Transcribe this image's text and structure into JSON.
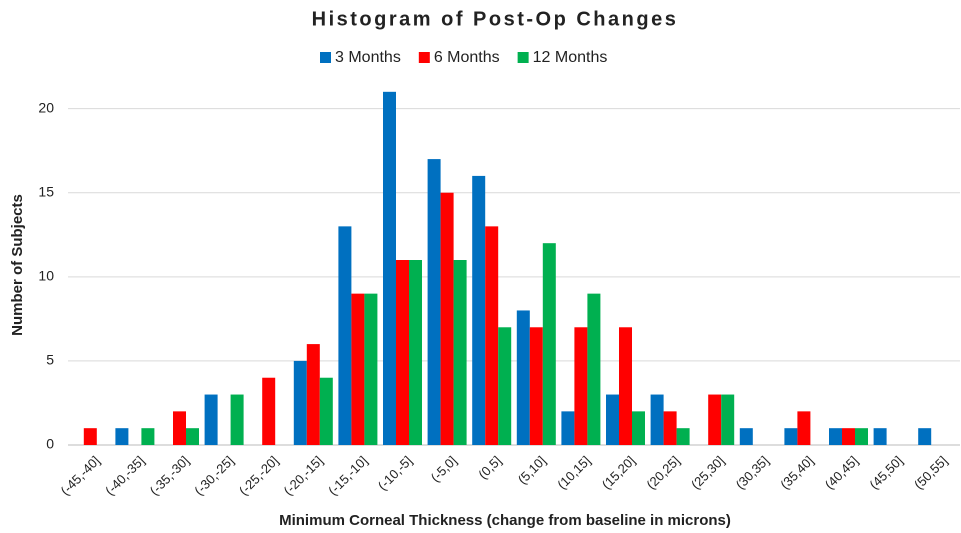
{
  "chart_data": {
    "type": "bar",
    "title": "Histogram of Post-Op Changes",
    "x_label": "Minimum Corneal Thickness (change from baseline in microns)",
    "y_label": "Number of Subjects",
    "categories": [
      "(-45,-40]",
      "(-40,-35]",
      "(-35,-30]",
      "(-30,-25]",
      "(-25,-20]",
      "(-20,-15]",
      "(-15,-10]",
      "(-10,-5]",
      "(-5,0]",
      "(0,5]",
      "(5,10]",
      "(10,15]",
      "(15,20]",
      "(20,25]",
      "(25,30]",
      "(30,35]",
      "(35,40]",
      "(40,45]",
      "(45,50]",
      "(50,55]"
    ],
    "series": [
      {
        "name": "3 Months",
        "color": "#0070c0",
        "values": [
          0,
          1,
          0,
          3,
          0,
          5,
          13,
          21,
          17,
          16,
          8,
          2,
          3,
          3,
          0,
          1,
          1,
          1,
          1,
          1
        ]
      },
      {
        "name": "6 Months",
        "color": "#ff0000",
        "values": [
          1,
          0,
          2,
          0,
          4,
          6,
          9,
          11,
          15,
          13,
          7,
          7,
          7,
          2,
          3,
          0,
          2,
          1,
          0,
          0
        ]
      },
      {
        "name": "12 Months",
        "color": "#00b050",
        "values": [
          0,
          1,
          1,
          3,
          0,
          4,
          9,
          11,
          11,
          7,
          12,
          9,
          2,
          1,
          3,
          0,
          0,
          1,
          0,
          0
        ]
      }
    ],
    "ylim": [
      0,
      22
    ],
    "yticks": [
      0,
      5,
      10,
      15,
      20
    ],
    "grid": true,
    "legend": "top"
  }
}
